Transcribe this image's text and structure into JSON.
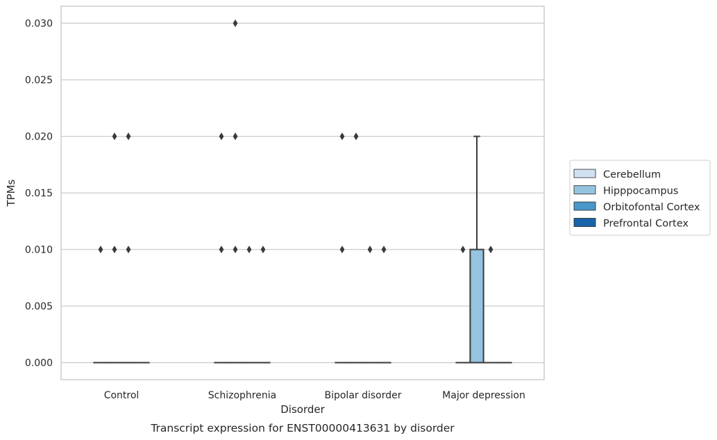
{
  "chart_data": {
    "type": "box",
    "title": "",
    "caption": "Transcript expression for ENST00000413631 by disorder",
    "xlabel": "Disorder",
    "ylabel": "TPMs",
    "ylim": [
      -0.0015,
      0.0315
    ],
    "yticks": [
      "0.000",
      "0.005",
      "0.010",
      "0.015",
      "0.020",
      "0.025",
      "0.030"
    ],
    "ytick_values": [
      0.0,
      0.005,
      0.01,
      0.015,
      0.02,
      0.025,
      0.03
    ],
    "categories": [
      "Control",
      "Schizophrenia",
      "Bipolar disorder",
      "Major depression"
    ],
    "grid": "horizontal",
    "legend_position": "right",
    "series": [
      {
        "name": "Cerebellum",
        "color": "#d0e1f2",
        "boxes": [
          {
            "q1": 0,
            "median": 0,
            "q3": 0,
            "whislo": 0,
            "whishi": 0,
            "fliers": [
              0.01
            ]
          },
          {
            "q1": 0,
            "median": 0,
            "q3": 0,
            "whislo": 0,
            "whishi": 0,
            "fliers": [
              0.01,
              0.02
            ]
          },
          {
            "q1": 0,
            "median": 0,
            "q3": 0,
            "whislo": 0,
            "whishi": 0,
            "fliers": [
              0.01,
              0.02
            ]
          },
          {
            "q1": 0,
            "median": 0,
            "q3": 0,
            "whislo": 0,
            "whishi": 0,
            "fliers": [
              0.01
            ]
          }
        ]
      },
      {
        "name": "Hipppocampus",
        "color": "#94c4df",
        "boxes": [
          {
            "q1": 0,
            "median": 0,
            "q3": 0,
            "whislo": 0,
            "whishi": 0,
            "fliers": [
              0.01,
              0.02
            ]
          },
          {
            "q1": 0,
            "median": 0,
            "q3": 0,
            "whislo": 0,
            "whishi": 0,
            "fliers": [
              0.01,
              0.02,
              0.03
            ]
          },
          {
            "q1": 0,
            "median": 0,
            "q3": 0,
            "whislo": 0,
            "whishi": 0,
            "fliers": [
              0.02
            ]
          },
          {
            "q1": 0,
            "median": 0,
            "q3": 0.01,
            "whislo": 0,
            "whishi": 0.02,
            "fliers": []
          }
        ]
      },
      {
        "name": "Orbitofontal Cortex",
        "color": "#4a98c9",
        "boxes": [
          {
            "q1": 0,
            "median": 0,
            "q3": 0,
            "whislo": 0,
            "whishi": 0,
            "fliers": [
              0.01,
              0.02
            ]
          },
          {
            "q1": 0,
            "median": 0,
            "q3": 0,
            "whislo": 0,
            "whishi": 0,
            "fliers": [
              0.01
            ]
          },
          {
            "q1": 0,
            "median": 0,
            "q3": 0,
            "whislo": 0,
            "whishi": 0,
            "fliers": [
              0.01
            ]
          },
          {
            "q1": 0,
            "median": 0,
            "q3": 0,
            "whislo": 0,
            "whishi": 0,
            "fliers": [
              0.01
            ]
          }
        ]
      },
      {
        "name": "Prefrontal Cortex",
        "color": "#1764ab",
        "boxes": [
          {
            "q1": 0,
            "median": 0,
            "q3": 0,
            "whislo": 0,
            "whishi": 0,
            "fliers": []
          },
          {
            "q1": 0,
            "median": 0,
            "q3": 0,
            "whislo": 0,
            "whishi": 0,
            "fliers": [
              0.01
            ]
          },
          {
            "q1": 0,
            "median": 0,
            "q3": 0,
            "whislo": 0,
            "whishi": 0,
            "fliers": [
              0.01
            ]
          },
          {
            "q1": 0,
            "median": 0,
            "q3": 0,
            "whislo": 0,
            "whishi": 0,
            "fliers": []
          }
        ]
      }
    ]
  }
}
